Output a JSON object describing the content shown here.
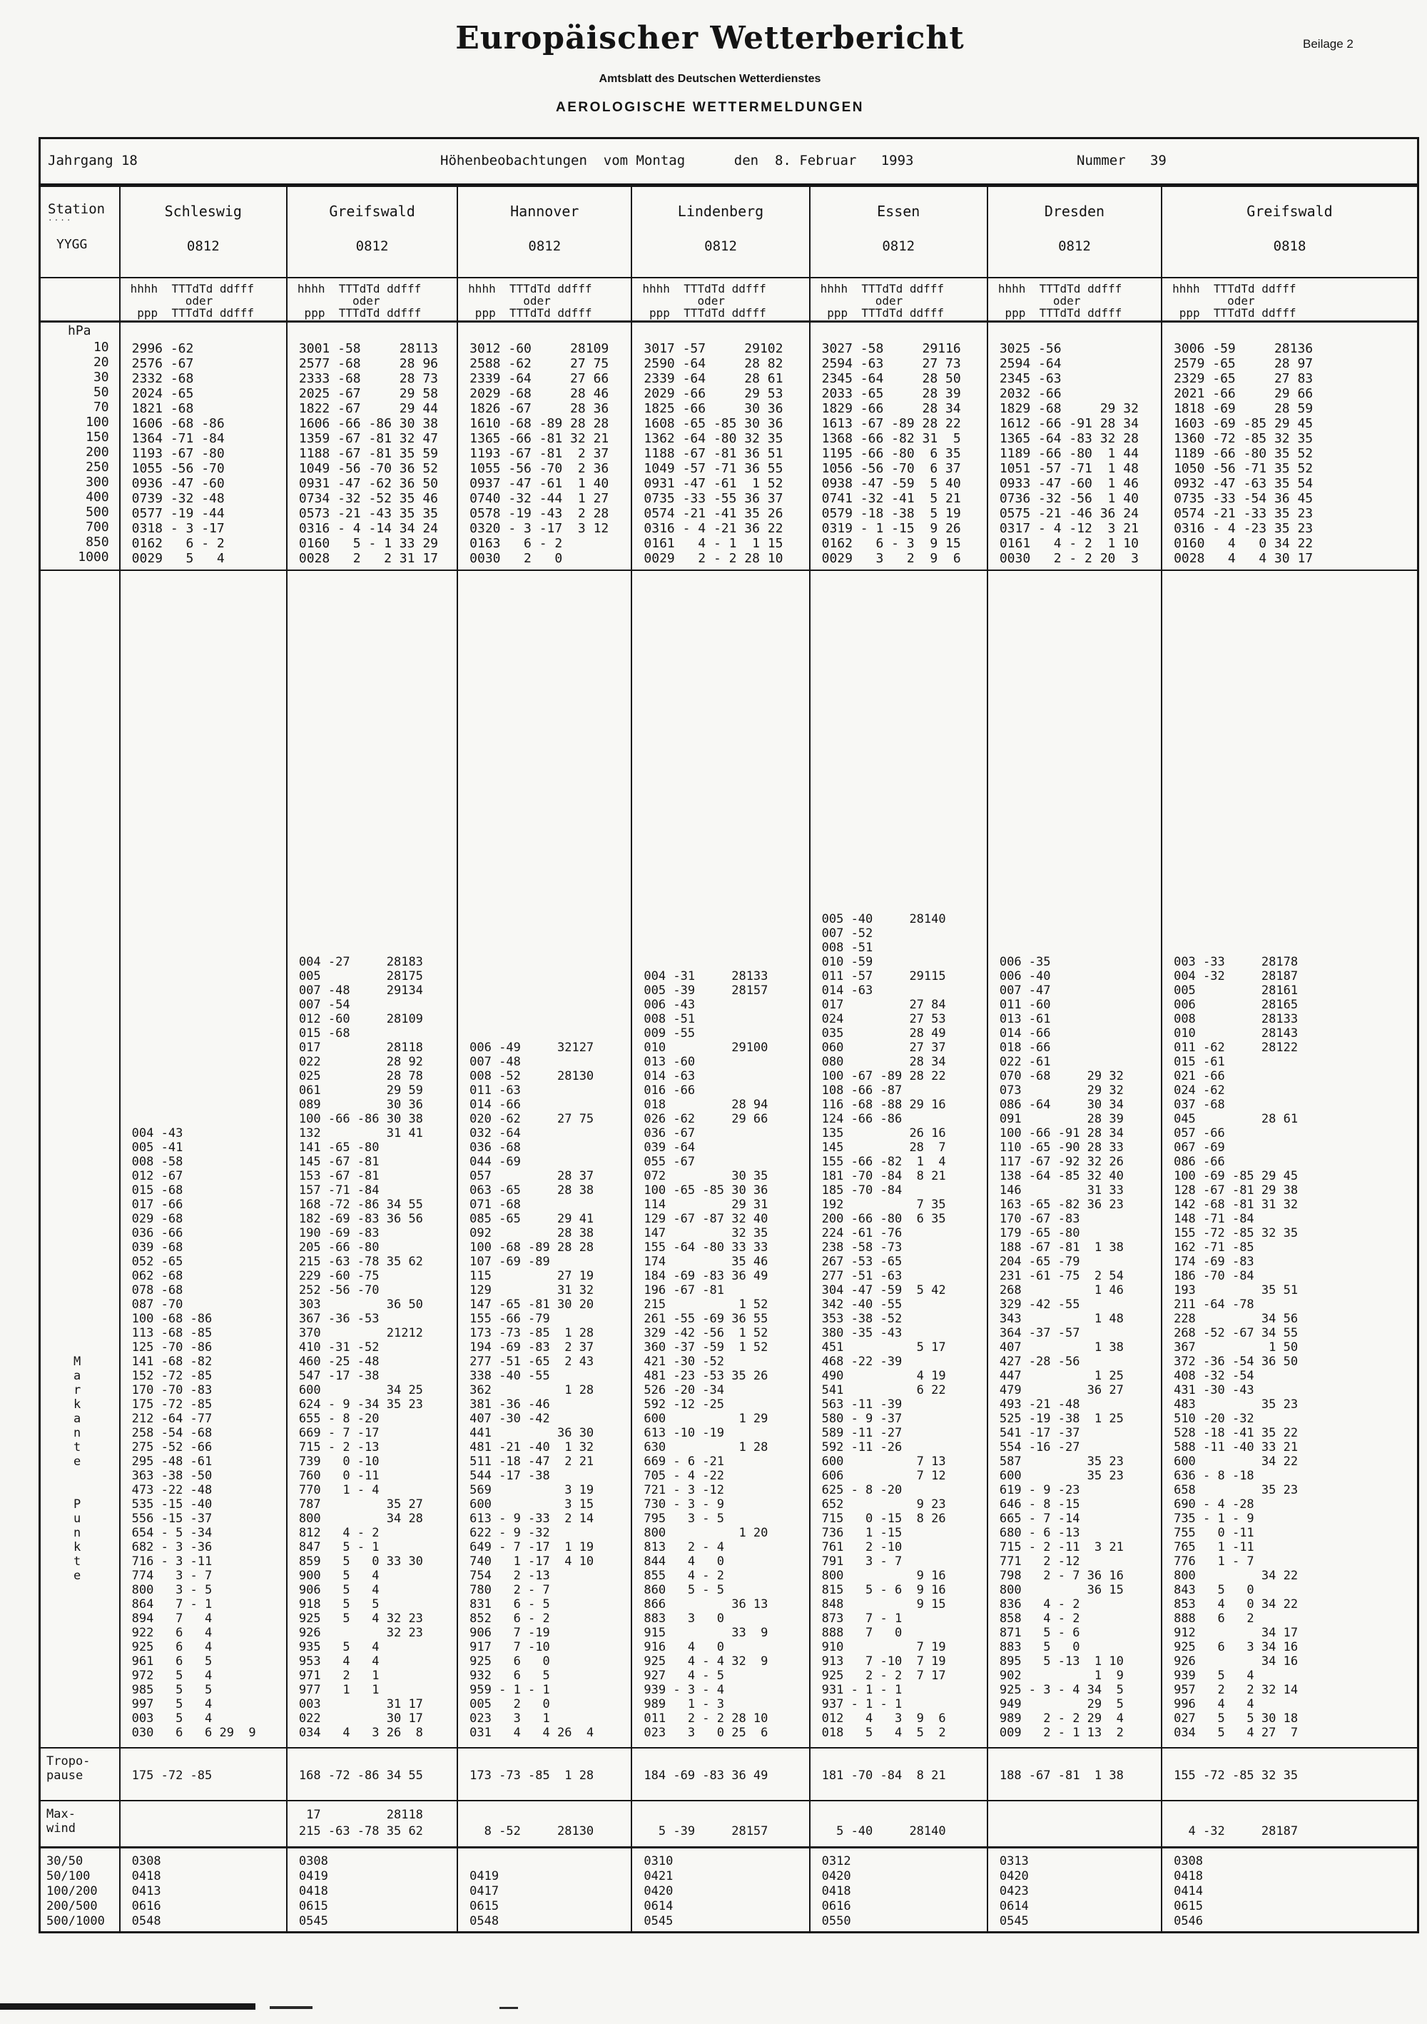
{
  "page": {
    "title": "Europäischer Wetterbericht",
    "subtitle": "Amtsblatt des Deutschen Wetterdienstes",
    "section": "AEROLOGISCHE WETTERMELDUNGEN",
    "corner": "Beilage 2"
  },
  "info_row": {
    "jahrgang": "Jahrgang 18",
    "center": "Höhenbeobachtungen  vom Montag      den  8. Februar   1993",
    "nummer": "Nummer   39"
  },
  "station_col": {
    "station_label": "Station",
    "dashes": "····",
    "yygg_label": "YYGG",
    "hpa_label": "hPa",
    "levels": [
      "10",
      "20",
      "30",
      "50",
      "70",
      "100",
      "150",
      "200",
      "250",
      "300",
      "400",
      "500",
      "700",
      "850",
      "1000"
    ],
    "markante_letters": [
      "M",
      "a",
      "r",
      "k",
      "a",
      "n",
      "t",
      "e",
      "",
      "",
      "P",
      "u",
      "n",
      "k",
      "t",
      "e",
      "",
      "",
      "",
      "",
      "",
      "",
      "",
      "",
      "",
      "",
      ""
    ],
    "tropo_label_1": "Tropo-",
    "tropo_label_2": "pause",
    "maxwind_label_1": "Max-",
    "maxwind_label_2": "wind",
    "mean_wind_labels": [
      "30/50",
      "50/100",
      "100/200",
      "200/500",
      "500/1000"
    ]
  },
  "columns": [
    {
      "name": "Schleswig",
      "time": "0812",
      "header_lines": [
        "hhhh  TTTdTd ddfff",
        "        oder",
        " ppp  TTTdTd ddfff"
      ],
      "levels": [
        "2996 -62",
        "2576 -67",
        "2332 -68",
        "2024 -65",
        "1821 -68",
        "1606 -68 -86",
        "1364 -71 -84",
        "1193 -67 -80",
        "1055 -56 -70",
        "0936 -47 -60",
        "0739 -32 -48",
        "0577 -19 -44",
        "0318 - 3 -17",
        "0162   6 - 2",
        "0029   5   4"
      ],
      "significant": [
        "004 -43",
        "005 -41",
        "008 -58",
        "012 -67",
        "015 -68",
        "017 -66",
        "029 -68",
        "036 -66",
        "039 -68",
        "052 -65",
        "062 -68",
        "078 -68",
        "087 -70",
        "100 -68 -86",
        "113 -68 -85",
        "125 -70 -86",
        "141 -68 -82",
        "152 -72 -85",
        "170 -70 -83",
        "175 -72 -85",
        "212 -64 -77",
        "258 -54 -68",
        "275 -52 -66",
        "295 -48 -61",
        "363 -38 -50",
        "473 -22 -48",
        "535 -15 -40",
        "556 -15 -37",
        "654 - 5 -34",
        "682 - 3 -36",
        "716 - 3 -11",
        "774   3 - 7",
        "800   3 - 5",
        "864   7 - 1",
        "894   7   4",
        "922   6   4",
        "925   6   4",
        "961   6   5",
        "972   5   4",
        "985   5   5",
        "997   5   4",
        "003   5   4",
        "030   6   6 29  9"
      ],
      "tropopause": "175 -72 -85",
      "max_wind": [
        " ",
        " "
      ],
      "mean_winds": [
        "0308",
        "0418",
        "0413",
        "0616",
        "0548"
      ]
    },
    {
      "name": "Greifswald",
      "time": "0812",
      "header_lines": [
        "hhhh  TTTdTd ddfff",
        "        oder",
        " ppp  TTTdTd ddfff"
      ],
      "levels": [
        "3001 -58     28113",
        "2577 -68     28 96",
        "2333 -68     28 73",
        "2025 -67     29 58",
        "1822 -67     29 44",
        "1606 -66 -86 30 38",
        "1359 -67 -81 32 47",
        "1188 -67 -81 35 59",
        "1049 -56 -70 36 52",
        "0931 -47 -62 36 50",
        "0734 -32 -52 35 46",
        "0573 -21 -43 35 35",
        "0316 - 4 -14 34 24",
        "0160   5 - 1 33 29",
        "0028   2   2 31 17"
      ],
      "significant": [
        "004 -27     28183",
        "005         28175",
        "007 -48     29134",
        "007 -54",
        "012 -60     28109",
        "015 -68",
        "017         28118",
        "022         28 92",
        "025         28 78",
        "061         29 59",
        "089         30 36",
        "100 -66 -86 30 38",
        "132         31 41",
        "141 -65 -80",
        "145 -67 -81",
        "153 -67 -81",
        "157 -71 -84",
        "168 -72 -86 34 55",
        "182 -69 -83 36 56",
        "190 -69 -83",
        "205 -66 -80",
        "215 -63 -78 35 62",
        "229 -60 -75",
        "252 -56 -70",
        "303         36 50",
        "367 -36 -53",
        "370         21212",
        "410 -31 -52",
        "460 -25 -48",
        "547 -17 -38",
        "600         34 25",
        "624 - 9 -34 35 23",
        "655 - 8 -20",
        "669 - 7 -17",
        "715 - 2 -13",
        "739   0 -10",
        "760   0 -11",
        "770   1 - 4",
        "787         35 27",
        "800         34 28",
        "812   4 - 2",
        "847   5 - 1",
        "859   5   0 33 30",
        "900   5   4",
        "906   5   4",
        "918   5   5",
        "925   5   4 32 23",
        "926         32 23",
        "935   5   4",
        "953   4   4",
        "971   2   1",
        "977   1   1",
        "003         31 17",
        "022         30 17",
        "034   4   3 26  8"
      ],
      "tropopause": "168 -72 -86 34 55",
      "max_wind": [
        " 17         28118",
        "215 -63 -78 35 62"
      ],
      "mean_winds": [
        "0308",
        "0419",
        "0418",
        "0615",
        "0545"
      ]
    },
    {
      "name": "Hannover",
      "time": "0812",
      "header_lines": [
        "hhhh  TTTdTd ddfff",
        "        oder",
        " ppp  TTTdTd ddfff"
      ],
      "levels": [
        "3012 -60     28109",
        "2588 -62     27 75",
        "2339 -64     27 66",
        "2029 -68     28 46",
        "1826 -67     28 36",
        "1610 -68 -89 28 28",
        "1365 -66 -81 32 21",
        "1193 -67 -81  2 37",
        "1055 -56 -70  2 36",
        "0937 -47 -61  1 40",
        "0740 -32 -44  1 27",
        "0578 -19 -43  2 28",
        "0320 - 3 -17  3 12",
        "0163   6 - 2",
        "0030   2   0"
      ],
      "significant": [
        "006 -49     32127",
        "007 -48",
        "008 -52     28130",
        "011 -63",
        "014 -66",
        "020 -62     27 75",
        "032 -64",
        "036 -68",
        "044 -69",
        "057         28 37",
        "063 -65     28 38",
        "071 -68",
        "085 -65     29 41",
        "092         28 38",
        "100 -68 -89 28 28",
        "107 -69 -89",
        "115         27 19",
        "129         31 32",
        "147 -65 -81 30 20",
        "155 -66 -79",
        "173 -73 -85  1 28",
        "194 -69 -83  2 37",
        "277 -51 -65  2 43",
        "338 -40 -55",
        "362          1 28",
        "381 -36 -46",
        "407 -30 -42",
        "441         36 30",
        "481 -21 -40  1 32",
        "511 -18 -47  2 21",
        "544 -17 -38",
        "569          3 19",
        "600          3 15",
        "613 - 9 -33  2 14",
        "622 - 9 -32",
        "649 - 7 -17  1 19",
        "740   1 -17  4 10",
        "754   2 -13",
        "780   2 - 7",
        "831   6 - 5",
        "852   6 - 2",
        "906   7 -19",
        "917   7 -10",
        "925   6   0",
        "932   6   5",
        "959 - 1 - 1",
        "005   2   0",
        "023   3   1",
        "031   4   4 26  4"
      ],
      "tropopause": "173 -73 -85  1 28",
      "max_wind": [
        " ",
        "  8 -52     28130"
      ],
      "mean_winds": [
        "",
        "0419",
        "0417",
        "0615",
        "0548"
      ]
    },
    {
      "name": "Lindenberg",
      "time": "0812",
      "header_lines": [
        "hhhh  TTTdTd ddfff",
        "        oder",
        " ppp  TTTdTd ddfff"
      ],
      "levels": [
        "3017 -57     29102",
        "2590 -64     28 82",
        "2339 -64     28 61",
        "2029 -66     29 53",
        "1825 -66     30 36",
        "1608 -65 -85 30 36",
        "1362 -64 -80 32 35",
        "1188 -67 -81 36 51",
        "1049 -57 -71 36 55",
        "0931 -47 -61  1 52",
        "0735 -33 -55 36 37",
        "0574 -21 -41 35 26",
        "0316 - 4 -21 36 22",
        "0161   4 - 1  1 15",
        "0029   2 - 2 28 10"
      ],
      "significant": [
        "004 -31     28133",
        "005 -39     28157",
        "006 -43",
        "008 -51",
        "009 -55",
        "010         29100",
        "013 -60",
        "014 -63",
        "016 -66",
        "018         28 94",
        "026 -62     29 66",
        "036 -67",
        "039 -64",
        "055 -67",
        "072         30 35",
        "100 -65 -85 30 36",
        "114         29 31",
        "129 -67 -87 32 40",
        "147         32 35",
        "155 -64 -80 33 33",
        "174         35 46",
        "184 -69 -83 36 49",
        "196 -67 -81",
        "215          1 52",
        "261 -55 -69 36 55",
        "329 -42 -56  1 52",
        "360 -37 -59  1 52",
        "421 -30 -52",
        "481 -23 -53 35 26",
        "526 -20 -34",
        "592 -12 -25",
        "600          1 29",
        "613 -10 -19",
        "630          1 28",
        "669 - 6 -21",
        "705 - 4 -22",
        "721 - 3 -12",
        "730 - 3 - 9",
        "795   3 - 5",
        "800          1 20",
        "813   2 - 4",
        "844   4   0",
        "855   4 - 2",
        "860   5 - 5",
        "866         36 13",
        "883   3   0",
        "915         33  9",
        "916   4   0",
        "925   4 - 4 32  9",
        "927   4 - 5",
        "939 - 3 - 4",
        "989   1 - 3",
        "011   2 - 2 28 10",
        "023   3   0 25  6"
      ],
      "tropopause": "184 -69 -83 36 49",
      "max_wind": [
        " ",
        "  5 -39     28157"
      ],
      "mean_winds": [
        "0310",
        "0421",
        "0420",
        "0614",
        "0545"
      ]
    },
    {
      "name": "Essen",
      "time": "0812",
      "header_lines": [
        "hhhh  TTTdTd ddfff",
        "        oder",
        " ppp  TTTdTd ddfff"
      ],
      "levels": [
        "3027 -58     29116",
        "2594 -63     27 73",
        "2345 -64     28 50",
        "2033 -65     28 39",
        "1829 -66     28 34",
        "1613 -67 -89 28 22",
        "1368 -66 -82 31  5",
        "1195 -66 -80  6 35",
        "1056 -56 -70  6 37",
        "0938 -47 -59  5 40",
        "0741 -32 -41  5 21",
        "0579 -18 -38  5 19",
        "0319 - 1 -15  9 26",
        "0162   6 - 3  9 15",
        "0029   3   2  9  6"
      ],
      "significant": [
        "005 -40     28140",
        "007 -52",
        "008 -51",
        "010 -59",
        "011 -57     29115",
        "014 -63",
        "017         27 84",
        "024         27 53",
        "035         28 49",
        "060         27 37",
        "080         28 34",
        "100 -67 -89 28 22",
        "108 -66 -87",
        "116 -68 -88 29 16",
        "124 -66 -86",
        "135         26 16",
        "145         28  7",
        "155 -66 -82  1  4",
        "181 -70 -84  8 21",
        "185 -70 -84",
        "192          7 35",
        "200 -66 -80  6 35",
        "224 -61 -76",
        "238 -58 -73",
        "267 -53 -65",
        "277 -51 -63",
        "304 -47 -59  5 42",
        "342 -40 -55",
        "353 -38 -52",
        "380 -35 -43",
        "451          5 17",
        "468 -22 -39",
        "490          4 19",
        "541          6 22",
        "563 -11 -39",
        "580 - 9 -37",
        "589 -11 -27",
        "592 -11 -26",
        "600          7 13",
        "606          7 12",
        "625 - 8 -20",
        "652          9 23",
        "715   0 -15  8 26",
        "736   1 -15",
        "761   2 -10",
        "791   3 - 7",
        "800          9 16",
        "815   5 - 6  9 16",
        "848          9 15",
        "873   7 - 1",
        "888   7   0",
        "910          7 19",
        "913   7 -10  7 19",
        "925   2 - 2  7 17",
        "931 - 1 - 1",
        "937 - 1 - 1",
        "012   4   3  9  6",
        "018   5   4  5  2"
      ],
      "tropopause": "181 -70 -84  8 21",
      "max_wind": [
        " ",
        "  5 -40     28140"
      ],
      "mean_winds": [
        "0312",
        "0420",
        "0418",
        "0616",
        "0550"
      ]
    },
    {
      "name": "Dresden",
      "time": "0812",
      "header_lines": [
        "hhhh  TTTdTd ddfff",
        "        oder",
        " ppp  TTTdTd ddfff"
      ],
      "levels": [
        "3025 -56",
        "2594 -64",
        "2345 -63",
        "2032 -66",
        "1829 -68     29 32",
        "1612 -66 -91 28 34",
        "1365 -64 -83 32 28",
        "1189 -66 -80  1 44",
        "1051 -57 -71  1 48",
        "0933 -47 -60  1 46",
        "0736 -32 -56  1 40",
        "0575 -21 -46 36 24",
        "0317 - 4 -12  3 21",
        "0161   4 - 2  1 10",
        "0030   2 - 2 20  3"
      ],
      "significant": [
        "006 -35",
        "006 -40",
        "007 -47",
        "011 -60",
        "013 -61",
        "014 -66",
        "018 -66",
        "022 -61",
        "070 -68     29 32",
        "073         29 32",
        "086 -64     30 34",
        "091         28 39",
        "100 -66 -91 28 34",
        "110 -65 -90 28 33",
        "117 -67 -92 32 26",
        "138 -64 -85 32 40",
        "146         31 33",
        "163 -65 -82 36 23",
        "170 -67 -83",
        "179 -65 -80",
        "188 -67 -81  1 38",
        "204 -65 -79",
        "231 -61 -75  2 54",
        "268          1 46",
        "329 -42 -55",
        "343          1 48",
        "364 -37 -57",
        "407          1 38",
        "427 -28 -56",
        "447          1 25",
        "479         36 27",
        "493 -21 -48",
        "525 -19 -38  1 25",
        "541 -17 -37",
        "554 -16 -27",
        "587         35 23",
        "600         35 23",
        "619 - 9 -23",
        "646 - 8 -15",
        "665 - 7 -14",
        "680 - 6 -13",
        "715 - 2 -11  3 21",
        "771   2 -12",
        "798   2 - 7 36 16",
        "800         36 15",
        "836   4 - 2",
        "858   4 - 2",
        "871   5 - 6",
        "883   5   0",
        "895   5 -13  1 10",
        "902          1  9",
        "925 - 3 - 4 34  5",
        "949         29  5",
        "989   2 - 2 29  4",
        "009   2 - 1 13  2"
      ],
      "tropopause": "188 -67 -81  1 38",
      "max_wind": [
        " ",
        " "
      ],
      "mean_winds": [
        "0313",
        "0420",
        "0423",
        "0614",
        "0545"
      ]
    },
    {
      "name": "Greifswald",
      "time": "0818",
      "header_lines": [
        "hhhh  TTTdTd ddfff",
        "        oder",
        " ppp  TTTdTd ddfff"
      ],
      "levels": [
        "3006 -59     28136",
        "2579 -65     28 97",
        "2329 -65     27 83",
        "2021 -66     29 66",
        "1818 -69     28 59",
        "1603 -69 -85 29 45",
        "1360 -72 -85 32 35",
        "1189 -66 -80 35 52",
        "1050 -56 -71 35 52",
        "0932 -47 -63 35 54",
        "0735 -33 -54 36 45",
        "0574 -21 -33 35 23",
        "0316 - 4 -23 35 23",
        "0160   4   0 34 22",
        "0028   4   4 30 17"
      ],
      "significant": [
        "003 -33     28178",
        "004 -32     28187",
        "005         28161",
        "006         28165",
        "008         28133",
        "010         28143",
        "011 -62     28122",
        "015 -61",
        "021 -66",
        "024 -62",
        "037 -68",
        "045         28 61",
        "057 -66",
        "067 -69",
        "086 -66",
        "100 -69 -85 29 45",
        "128 -67 -81 29 38",
        "142 -68 -81 31 32",
        "148 -71 -84",
        "155 -72 -85 32 35",
        "162 -71 -85",
        "174 -69 -83",
        "186 -70 -84",
        "193         35 51",
        "211 -64 -78",
        "228         34 56",
        "268 -52 -67 34 55",
        "367          1 50",
        "372 -36 -54 36 50",
        "408 -32 -54",
        "431 -30 -43",
        "483         35 23",
        "510 -20 -32",
        "528 -18 -41 35 22",
        "588 -11 -40 33 21",
        "600         34 22",
        "636 - 8 -18",
        "658         35 23",
        "690 - 4 -28",
        "735 - 1 - 9",
        "755   0 -11",
        "765   1 -11",
        "776   1 - 7",
        "800         34 22",
        "843   5   0",
        "853   4   0 34 22",
        "888   6   2",
        "912         34 17",
        "925   6   3 34 16",
        "926         34 16",
        "939   5   4",
        "957   2   2 32 14",
        "996   4   4",
        "027   5   5 30 18",
        "034   5   4 27  7"
      ],
      "tropopause": "155 -72 -85 32 35",
      "max_wind": [
        " ",
        "  4 -32     28187"
      ],
      "mean_winds": [
        "0308",
        "0418",
        "0414",
        "0615",
        "0546"
      ]
    }
  ]
}
